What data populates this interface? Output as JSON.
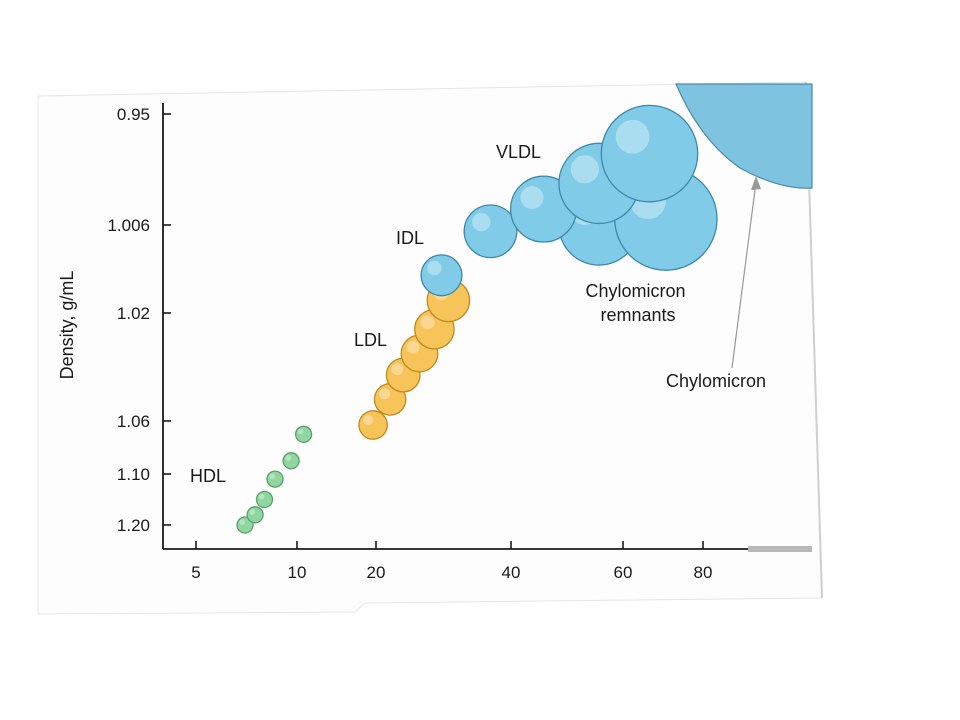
{
  "chart_data": {
    "type": "scatter",
    "title": "",
    "ylabel": "Density, g/mL",
    "xlabel": "",
    "x_ticks": [
      "5",
      "10",
      "20",
      "40",
      "60",
      "80"
    ],
    "y_ticks": [
      "0.95",
      "1.006",
      "1.02",
      "1.06",
      "1.10",
      "1.20"
    ],
    "y_reversed": true,
    "grid": false,
    "colors": {
      "HDL": "#8fd6a0",
      "LDL": "#f7c45a",
      "IDL_VLDL": "#7fcbe8",
      "Chylomicron": "#86c8e2"
    },
    "series": [
      {
        "name": "HDL",
        "label": "HDL",
        "points": [
          {
            "x": 7,
            "y": 1.2
          },
          {
            "x": 7.5,
            "y": 1.18
          },
          {
            "x": 8,
            "y": 1.15
          },
          {
            "x": 8.6,
            "y": 1.11
          },
          {
            "x": 9.6,
            "y": 1.09
          },
          {
            "x": 10.6,
            "y": 1.07
          }
        ]
      },
      {
        "name": "LDL",
        "label": "LDL",
        "points": [
          {
            "x": 19.5,
            "y": 1.063
          },
          {
            "x": 21.5,
            "y": 1.052
          },
          {
            "x": 23,
            "y": 1.043
          },
          {
            "x": 25,
            "y": 1.035
          },
          {
            "x": 27,
            "y": 1.026
          },
          {
            "x": 29,
            "y": 1.018
          }
        ]
      },
      {
        "name": "IDL",
        "label": "IDL",
        "points": [
          {
            "x": 28,
            "y": 1.014
          }
        ]
      },
      {
        "name": "VLDL",
        "label": "VLDL",
        "points": [
          {
            "x": 36,
            "y": 1.007
          },
          {
            "x": 45,
            "y": 0.998
          },
          {
            "x": 55,
            "y": 0.985
          },
          {
            "x": 66,
            "y": 0.97
          }
        ]
      },
      {
        "name": "Chylomicron remnants",
        "label": "Chylomicron remnants",
        "points": [
          {
            "x": 55,
            "y": 1.006
          },
          {
            "x": 70,
            "y": 1.003
          }
        ]
      },
      {
        "name": "Chylomicron",
        "label": "Chylomicron",
        "points": [
          {
            "x": 130,
            "y": 0.95
          }
        ]
      }
    ]
  }
}
